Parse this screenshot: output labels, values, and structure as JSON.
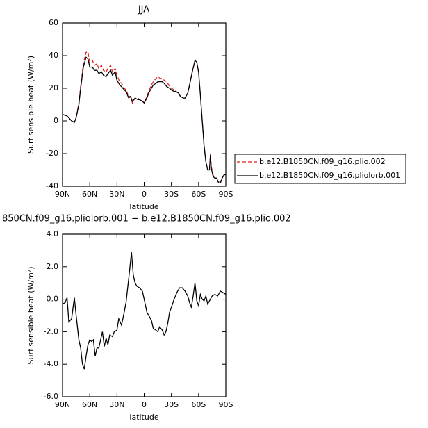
{
  "chart_data": [
    {
      "type": "line",
      "title": "JJA",
      "xlabel": "latitude",
      "ylabel": "Surf sensible heat (W/m²)",
      "x": [
        90,
        85,
        80,
        77,
        75,
        72,
        70,
        67,
        64,
        62,
        60,
        57,
        55,
        52,
        50,
        47,
        45,
        42,
        40,
        37,
        35,
        32,
        30,
        27,
        25,
        22,
        20,
        17,
        15,
        13,
        10,
        7,
        5,
        2,
        0,
        -3,
        -5,
        -8,
        -10,
        -13,
        -15,
        -18,
        -20,
        -22,
        -25,
        -28,
        -30,
        -33,
        -35,
        -38,
        -40,
        -43,
        -45,
        -48,
        -50,
        -53,
        -56,
        -58,
        -60,
        -62,
        -64,
        -66,
        -68,
        -70,
        -72,
        -73,
        -74,
        -76,
        -78,
        -80,
        -82,
        -84,
        -86,
        -88,
        -90
      ],
      "series": [
        {
          "name": "b.e12.B1850CN.f09_g16.plio.002",
          "color": "#e0201b",
          "style": "dashed",
          "values": [
            4,
            3,
            0,
            -1,
            2,
            11,
            21,
            35,
            42,
            42,
            36,
            37,
            34,
            35,
            32,
            34,
            31,
            30,
            32,
            34,
            30,
            32,
            28,
            24,
            23,
            20,
            19,
            15,
            15,
            11,
            14,
            14,
            13,
            12,
            11,
            15,
            18,
            22,
            24,
            26,
            27,
            26,
            26,
            25,
            24,
            21,
            20,
            19,
            18,
            17,
            15,
            14,
            14,
            17,
            22,
            30,
            37,
            36,
            30,
            16,
            0,
            -15,
            -25,
            -30,
            -30,
            -20,
            -28,
            -33,
            -35,
            -35,
            -37,
            -37,
            -35,
            -33,
            -33
          ]
        },
        {
          "name": "b.e12.B1850CN.f09_g16.pliolorb.001",
          "color": "#000000",
          "style": "solid",
          "values": [
            4,
            3,
            0,
            -1,
            2,
            10,
            20,
            33,
            39,
            38,
            33,
            33,
            31,
            31,
            29,
            30,
            28,
            27,
            29,
            31,
            28,
            30,
            25,
            22,
            21,
            19,
            18,
            14,
            15,
            12,
            14,
            13,
            13,
            12,
            11,
            14,
            17,
            20,
            22,
            23,
            24,
            24,
            24,
            23,
            21,
            20,
            19,
            18,
            18,
            17,
            15,
            14,
            14,
            17,
            22,
            30,
            37,
            36,
            30,
            16,
            0,
            -15,
            -25,
            -30,
            -30,
            -21,
            -29,
            -34,
            -35,
            -35,
            -38,
            -38,
            -35,
            -33,
            -33
          ]
        }
      ],
      "xlim": [
        90,
        -90
      ],
      "xticks": [
        {
          "value": 90,
          "label": "90N"
        },
        {
          "value": 60,
          "label": "60N"
        },
        {
          "value": 30,
          "label": "30N"
        },
        0,
        {
          "value": -30,
          "label": "30S"
        },
        {
          "value": -60,
          "label": "60S"
        },
        {
          "value": -90,
          "label": "90S"
        }
      ],
      "ylim": [
        -40,
        60
      ],
      "yticks": [
        -40,
        -20,
        0,
        20,
        40,
        60
      ],
      "legend": "right"
    },
    {
      "type": "line",
      "title": "850CN.f09_g16.pliolorb.001 − b.e12.B1850CN.f09_g16.plio.002",
      "xlabel": "latitude",
      "ylabel": "Surf sensible heat (W/m²)",
      "x": [
        90,
        87,
        85,
        83,
        80,
        77,
        75,
        72,
        70,
        68,
        66,
        64,
        62,
        60,
        58,
        56,
        54,
        52,
        50,
        48,
        46,
        44,
        42,
        40,
        38,
        35,
        33,
        30,
        28,
        25,
        22,
        20,
        18,
        16,
        14,
        12,
        10,
        8,
        5,
        2,
        0,
        -3,
        -5,
        -8,
        -10,
        -13,
        -15,
        -17,
        -20,
        -22,
        -24,
        -26,
        -28,
        -30,
        -33,
        -36,
        -39,
        -42,
        -45,
        -48,
        -50,
        -52,
        -54,
        -56,
        -57,
        -58,
        -60,
        -62,
        -64,
        -66,
        -68,
        -70,
        -72,
        -75,
        -78,
        -81,
        -84,
        -87,
        -90
      ],
      "series": [
        {
          "color": "#000000",
          "style": "solid",
          "values": [
            -0.3,
            -0.2,
            0.1,
            -1.4,
            -1.2,
            0.1,
            -1.0,
            -2.5,
            -3.0,
            -4.0,
            -4.3,
            -3.5,
            -2.8,
            -2.5,
            -2.6,
            -2.5,
            -3.5,
            -3.0,
            -3.0,
            -2.5,
            -2.0,
            -2.9,
            -2.4,
            -2.8,
            -2.2,
            -2.3,
            -2.0,
            -1.9,
            -1.2,
            -1.6,
            -0.8,
            -0.2,
            0.8,
            1.8,
            2.9,
            1.5,
            1.0,
            0.8,
            0.7,
            0.5,
            0.0,
            -0.8,
            -1.0,
            -1.3,
            -1.8,
            -1.9,
            -2.0,
            -1.7,
            -1.9,
            -2.2,
            -2.0,
            -1.5,
            -0.8,
            -0.5,
            0.0,
            0.4,
            0.7,
            0.7,
            0.5,
            0.2,
            -0.2,
            -0.5,
            0.2,
            1.0,
            0.5,
            -0.1,
            -0.4,
            0.3,
            0.0,
            -0.1,
            0.2,
            -0.3,
            -0.1,
            0.2,
            0.3,
            0.2,
            0.5,
            0.4,
            0.3
          ]
        }
      ],
      "xlim": [
        90,
        -90
      ],
      "xticks": [
        {
          "value": 90,
          "label": "90N"
        },
        {
          "value": 60,
          "label": "60N"
        },
        {
          "value": 30,
          "label": "30N"
        },
        0,
        {
          "value": -30,
          "label": "30S"
        },
        {
          "value": -60,
          "label": "60S"
        },
        {
          "value": -90,
          "label": "90S"
        }
      ],
      "ylim": [
        -6,
        4
      ],
      "yticks": [
        {
          "value": -6,
          "label": "-6.0"
        },
        {
          "value": -4,
          "label": "-4.0"
        },
        {
          "value": -2,
          "label": "-2.0"
        },
        {
          "value": 0,
          "label": "0.0"
        },
        {
          "value": 2,
          "label": "2.0"
        },
        {
          "value": 4,
          "label": "4.0"
        }
      ]
    }
  ]
}
